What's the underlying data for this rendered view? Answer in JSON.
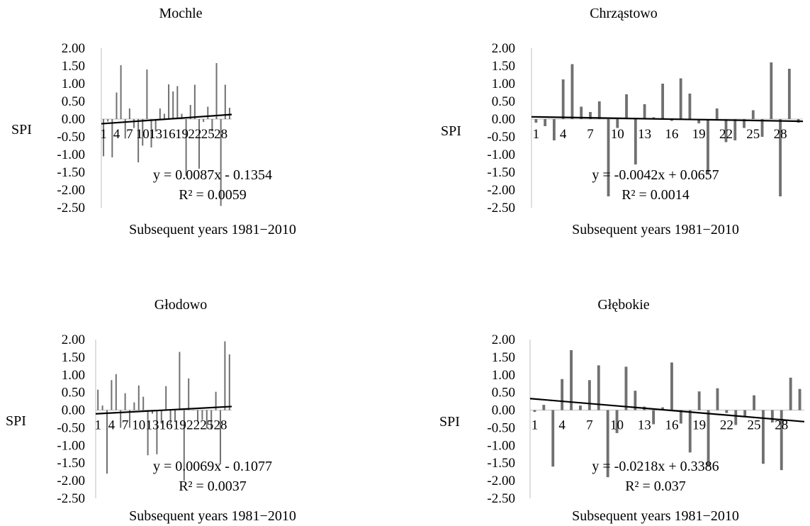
{
  "chart_data": [
    {
      "type": "bar",
      "title": "Mochle",
      "xlabel": "Subsequent years 1981−2010",
      "ylabel": "SPI",
      "ylim": [
        -2.5,
        2.0
      ],
      "ytick_labels": [
        "2.00",
        "1.50",
        "1.00",
        "0.50",
        "0.00",
        "-0.50",
        "-1.00",
        "-1.50",
        "-2.00",
        "-2.50"
      ],
      "xtick_labels": [
        "1",
        "4",
        "7",
        "10",
        "13",
        "16",
        "19",
        "22",
        "25",
        "28"
      ],
      "x": [
        1,
        2,
        3,
        4,
        5,
        6,
        7,
        8,
        9,
        10,
        11,
        12,
        13,
        14,
        15,
        16,
        17,
        18,
        19,
        20,
        21,
        22,
        23,
        24,
        25,
        26,
        27,
        28,
        29,
        30
      ],
      "values": [
        -1.05,
        -0.07,
        -1.08,
        0.75,
        1.52,
        -0.55,
        0.3,
        -0.25,
        -1.22,
        -0.75,
        1.4,
        -0.8,
        -0.35,
        0.3,
        0.15,
        0.98,
        0.78,
        0.93,
        0.15,
        -1.6,
        0.4,
        0.97,
        -1.4,
        -0.08,
        0.35,
        -0.35,
        1.58,
        -2.45,
        0.97,
        0.32
      ],
      "trendline": {
        "equation": "y = 0.0087x - 0.1354",
        "r2": "R² = 0.0059",
        "slope": 0.0087,
        "intercept": -0.1354
      },
      "grid": false,
      "legend": "none"
    },
    {
      "type": "bar",
      "title": "Chrząstowo",
      "xlabel": "Subsequent years 1981−2010",
      "ylabel": "SPI",
      "ylim": [
        -2.5,
        2.0
      ],
      "ytick_labels": [
        "2.00",
        "1.50",
        "1.00",
        "0.50",
        "0.00",
        "-0.50",
        "-1.00",
        "-1.50",
        "-2.00",
        "-2.50"
      ],
      "xtick_labels": [
        "1",
        "4",
        "7",
        "10",
        "13",
        "16",
        "19",
        "22",
        "25",
        "28"
      ],
      "x": [
        1,
        2,
        3,
        4,
        5,
        6,
        7,
        8,
        9,
        10,
        11,
        12,
        13,
        14,
        15,
        16,
        17,
        18,
        19,
        20,
        21,
        22,
        23,
        24,
        25,
        26,
        27,
        28,
        29,
        30
      ],
      "values": [
        -0.1,
        -0.2,
        -0.6,
        1.12,
        1.55,
        0.35,
        0.2,
        0.5,
        -2.18,
        -0.25,
        0.7,
        -1.28,
        0.42,
        0.05,
        1.0,
        -0.05,
        1.15,
        0.72,
        -0.12,
        -1.55,
        0.3,
        -0.65,
        -0.6,
        -0.25,
        0.25,
        -0.5,
        1.6,
        -2.18,
        1.42,
        -0.1
      ],
      "trendline": {
        "equation": "y = -0.0042x + 0.0657",
        "r2": "R² = 0.0014",
        "slope": -0.0042,
        "intercept": 0.0657
      },
      "grid": false,
      "legend": "none"
    },
    {
      "type": "bar",
      "title": "Głodowo",
      "xlabel": "Subsequent years 1981−2010",
      "ylabel": "SPI",
      "ylim": [
        -2.5,
        2.0
      ],
      "ytick_labels": [
        "2.00",
        "1.50",
        "1.00",
        "0.50",
        "0.00",
        "-0.50",
        "-1.00",
        "-1.50",
        "-2.00",
        "-2.50"
      ],
      "xtick_labels": [
        "1",
        "4",
        "7",
        "10",
        "13",
        "16",
        "19",
        "22",
        "25",
        "28"
      ],
      "x": [
        1,
        2,
        3,
        4,
        5,
        6,
        7,
        8,
        9,
        10,
        11,
        12,
        13,
        14,
        15,
        16,
        17,
        18,
        19,
        20,
        21,
        22,
        23,
        24,
        25,
        26,
        27,
        28,
        29,
        30
      ],
      "values": [
        0.58,
        0.13,
        -1.8,
        0.85,
        1.02,
        -0.5,
        0.48,
        -0.5,
        0.22,
        0.7,
        0.38,
        -1.28,
        -0.1,
        -1.25,
        -0.38,
        0.68,
        -0.38,
        -0.32,
        1.65,
        -2.0,
        0.9,
        0.0,
        -0.32,
        -0.28,
        -0.52,
        -0.55,
        0.52,
        -1.52,
        1.95,
        1.58
      ],
      "trendline": {
        "equation": "y = 0.0069x - 0.1077",
        "r2": "R² = 0.0037",
        "slope": 0.0069,
        "intercept": -0.1077
      },
      "grid": false,
      "legend": "none"
    },
    {
      "type": "bar",
      "title": "Głębokie",
      "xlabel": "Subsequent years 1981−2010",
      "ylabel": "SPI",
      "ylim": [
        -2.5,
        2.0
      ],
      "ytick_labels": [
        "2.00",
        "1.50",
        "1.00",
        "0.50",
        "0.00",
        "-0.50",
        "-1.00",
        "-1.50",
        "-2.00",
        "-2.50"
      ],
      "xtick_labels": [
        "1",
        "4",
        "7",
        "10",
        "13",
        "16",
        "19",
        "22",
        "25",
        "28"
      ],
      "x": [
        1,
        2,
        3,
        4,
        5,
        6,
        7,
        8,
        9,
        10,
        11,
        12,
        13,
        14,
        15,
        16,
        17,
        18,
        19,
        20,
        21,
        22,
        23,
        24,
        25,
        26,
        27,
        28,
        29,
        30
      ],
      "values": [
        -0.05,
        0.15,
        -1.6,
        0.88,
        1.7,
        0.13,
        0.85,
        1.27,
        -1.9,
        -0.65,
        1.23,
        0.55,
        0.1,
        -0.4,
        0.08,
        1.35,
        -0.38,
        -1.2,
        0.53,
        -1.6,
        0.62,
        -0.08,
        -0.42,
        -0.18,
        0.42,
        -1.52,
        -0.35,
        -1.7,
        0.92,
        0.6
      ],
      "trendline": {
        "equation": "y = -0.0218x + 0.3386",
        "r2": "R² = 0.037",
        "slope": -0.0218,
        "intercept": 0.3386
      },
      "grid": false,
      "legend": "none"
    }
  ],
  "colors": {
    "bar": "#707070",
    "trendline": "#000000",
    "axis": "#bfbfbf"
  }
}
